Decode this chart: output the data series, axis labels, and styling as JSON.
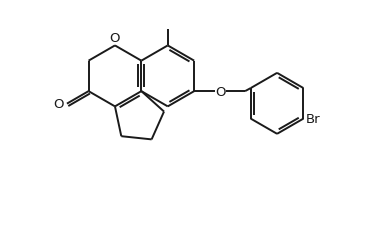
{
  "bg_color": "#ffffff",
  "line_color": "#1a1a1a",
  "lw": 1.4,
  "figsize": [
    3.66,
    2.3
  ],
  "dpi": 100,
  "xlim": [
    -1.5,
    9.5
  ],
  "ylim": [
    -1.0,
    6.5
  ]
}
